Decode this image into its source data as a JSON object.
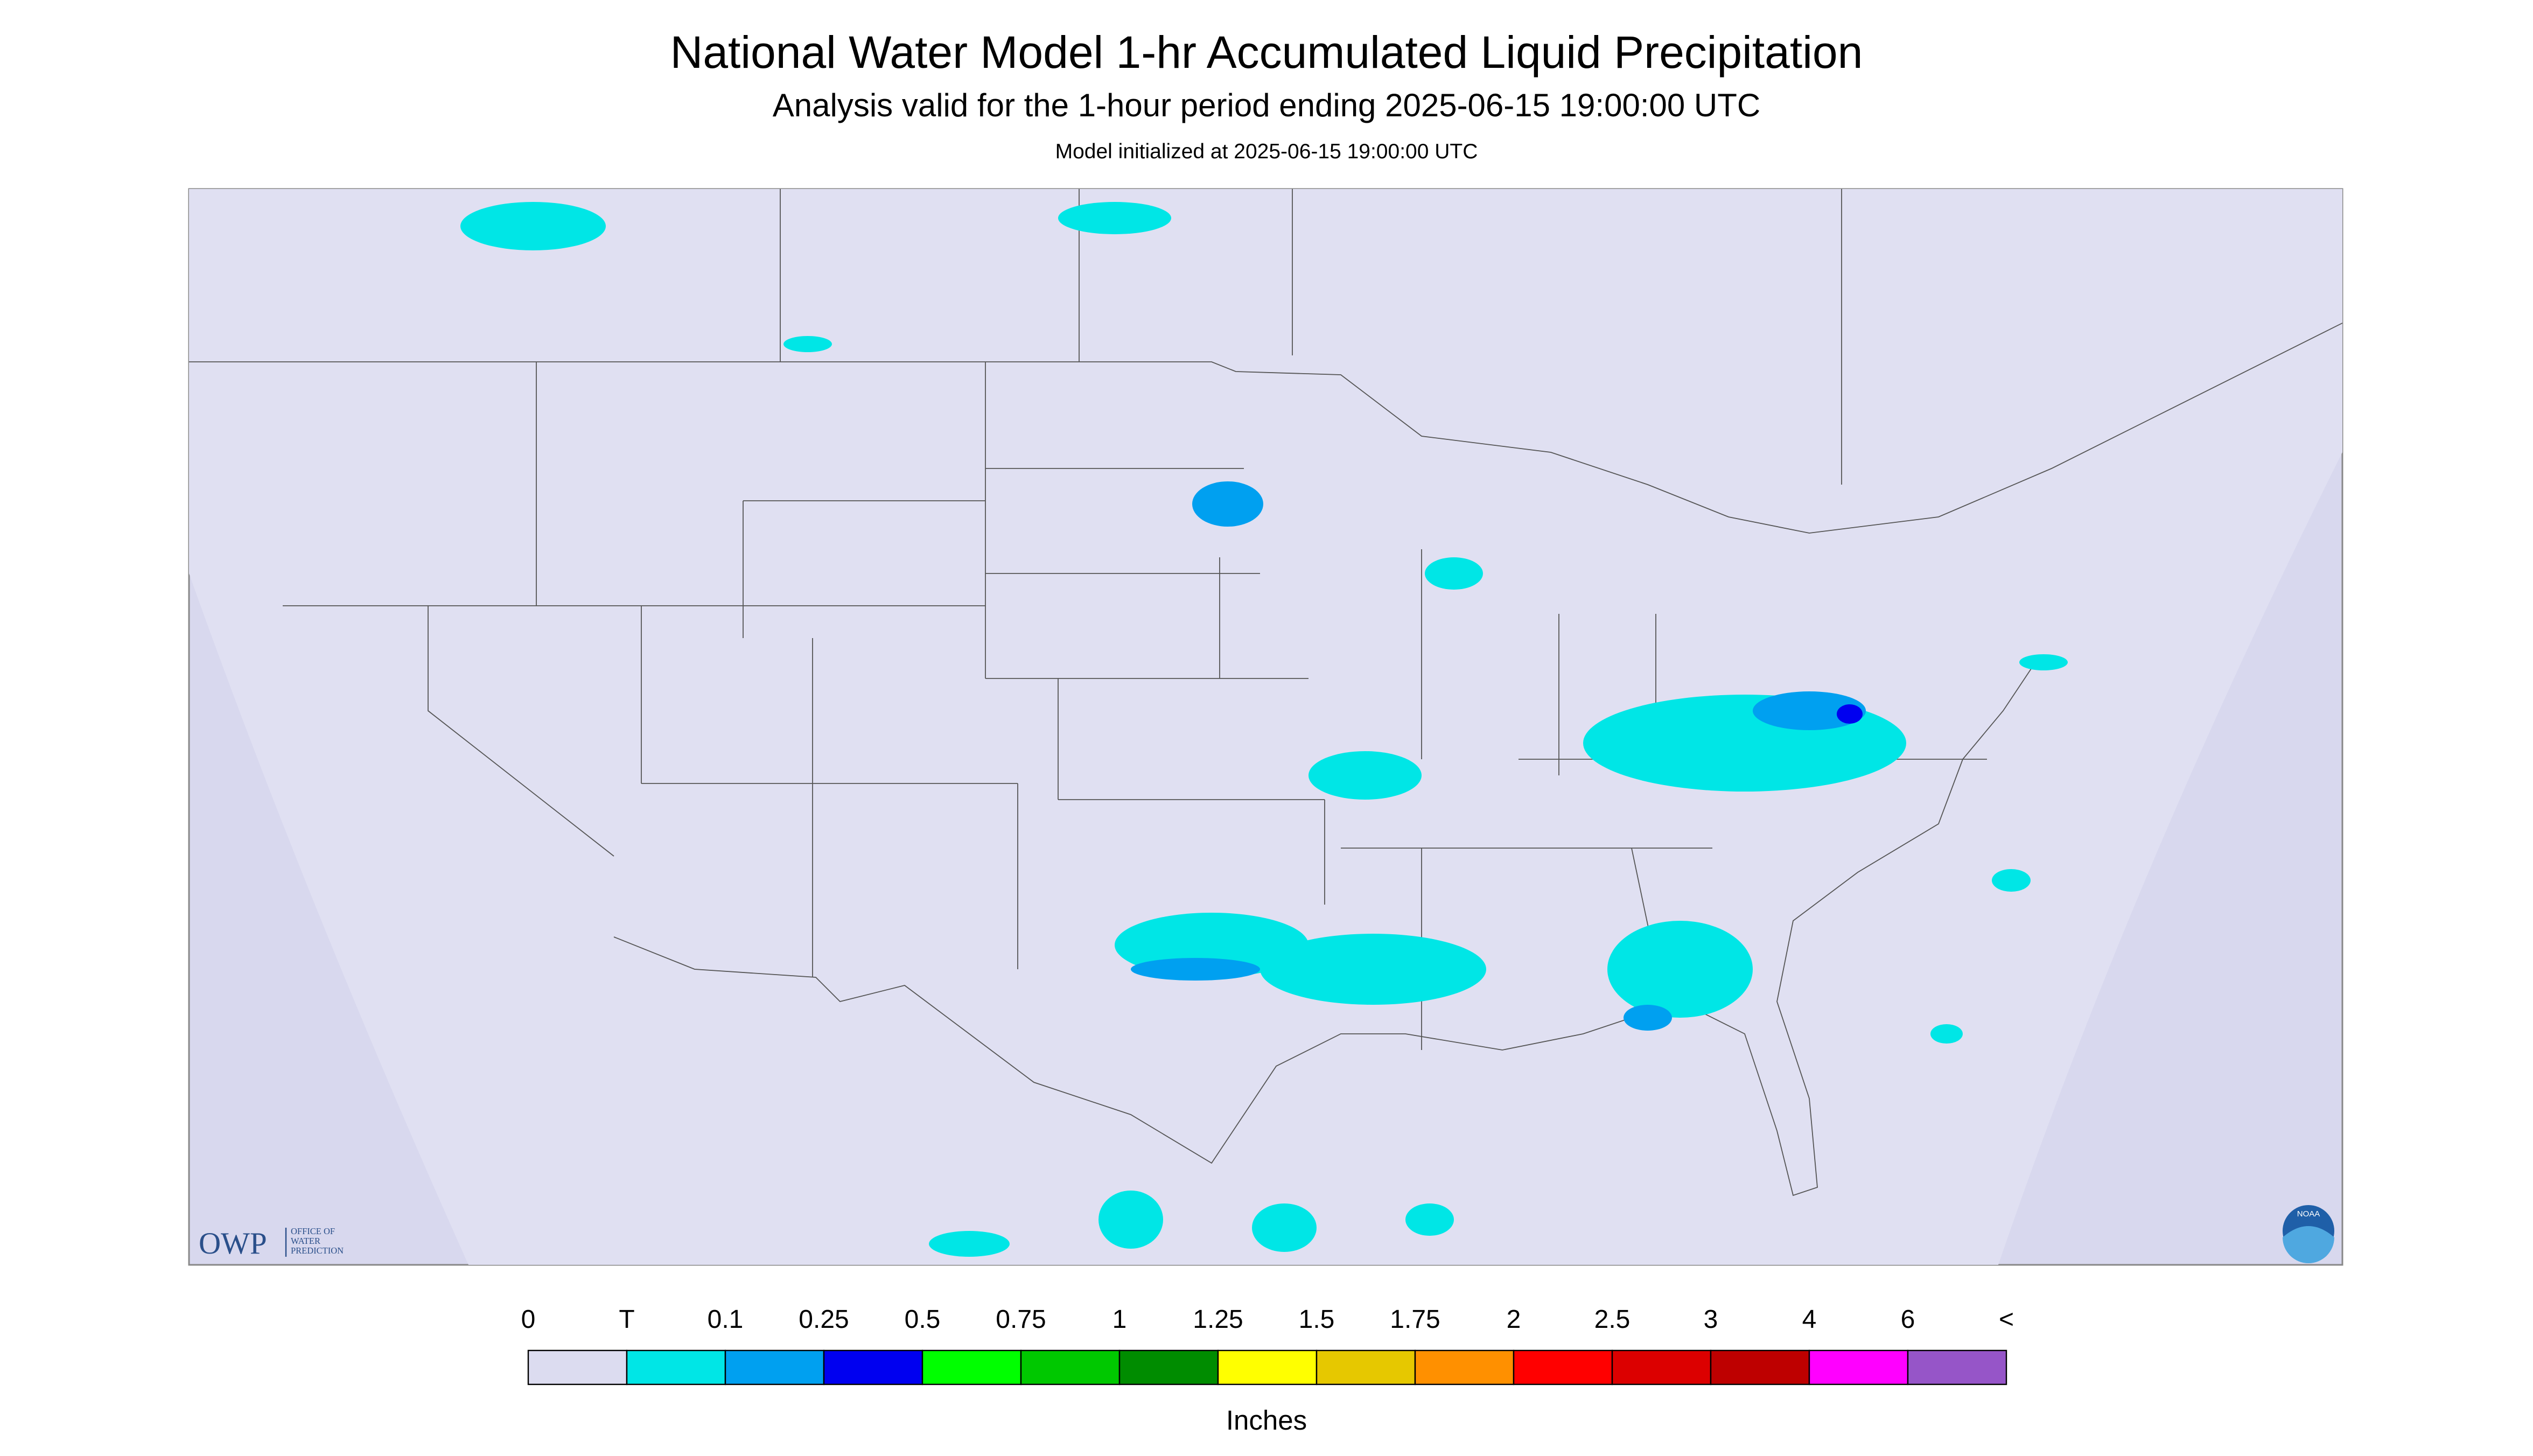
{
  "header": {
    "title": "National Water Model 1-hr Accumulated Liquid Precipitation",
    "subtitle": "Analysis valid for the 1-hour period ending 2025-06-15 19:00:00 UTC",
    "init": "Model initialized at 2025-06-15 19:00:00 UTC"
  },
  "legend": {
    "labels": [
      "0",
      "T",
      "0.1",
      "0.25",
      "0.5",
      "0.75",
      "1",
      "1.25",
      "1.5",
      "1.75",
      "2",
      "2.5",
      "3",
      "4",
      "6",
      "<"
    ],
    "colors": [
      "#dcdcf0",
      "#00e6e6",
      "#00a0f0",
      "#0000f0",
      "#00ff00",
      "#00c800",
      "#008c00",
      "#ffff00",
      "#e6c800",
      "#ff9000",
      "#ff0000",
      "#dc0000",
      "#be0000",
      "#ff00ff",
      "#9655c8"
    ],
    "unit": "Inches"
  },
  "logos": {
    "owp": "OWP",
    "owp_lines": [
      "OFFICE OF",
      "WATER",
      "PREDICTION"
    ],
    "noaa": "NOAA"
  }
}
